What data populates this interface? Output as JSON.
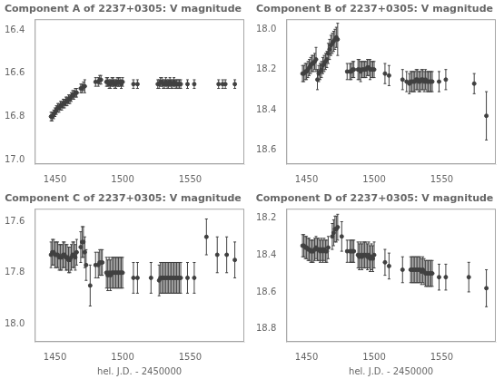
{
  "chart_data": [
    {
      "type": "scatter",
      "title": "Component A of 2237+0305: V magnitude",
      "color": "#404040",
      "marker": "circle",
      "grid": false,
      "xlim": [
        1435,
        1590
      ],
      "xticks": [
        1450,
        1500,
        1550
      ],
      "ylim": [
        17.02,
        16.35
      ],
      "yticks": [
        16.4,
        16.6,
        16.8,
        {
          "value": 17.0,
          "label": "17.0"
        }
      ],
      "x": [
        1447,
        1448,
        1449,
        1450,
        1451,
        1452,
        1453,
        1454,
        1455,
        1456,
        1457,
        1458,
        1459,
        1460,
        1461,
        1462,
        1463,
        1464,
        1465,
        1466,
        1469,
        1470,
        1471,
        1472,
        1480,
        1482,
        1483,
        1484,
        1488,
        1489,
        1490,
        1491,
        1492,
        1493,
        1494,
        1495,
        1496,
        1497,
        1498,
        1499,
        1500,
        1508,
        1511,
        1526,
        1527,
        1528,
        1529,
        1530,
        1531,
        1532,
        1533,
        1534,
        1535,
        1536,
        1537,
        1538,
        1539,
        1540,
        1541,
        1542,
        1543,
        1548,
        1553,
        1571,
        1574,
        1576,
        1583
      ],
      "values": [
        16.8,
        16.8,
        16.79,
        16.78,
        16.77,
        16.76,
        16.76,
        16.75,
        16.75,
        16.74,
        16.74,
        16.73,
        16.73,
        16.72,
        16.72,
        16.71,
        16.7,
        16.7,
        16.69,
        16.69,
        16.67,
        16.67,
        16.66,
        16.66,
        16.64,
        16.64,
        16.63,
        16.63,
        16.64,
        16.64,
        16.65,
        16.65,
        16.64,
        16.64,
        16.65,
        16.65,
        16.64,
        16.64,
        16.64,
        16.65,
        16.64,
        16.65,
        16.65,
        16.65,
        16.65,
        16.64,
        16.64,
        16.65,
        16.65,
        16.64,
        16.65,
        16.65,
        16.64,
        16.65,
        16.65,
        16.64,
        16.65,
        16.65,
        16.65,
        16.65,
        16.65,
        16.65,
        16.65,
        16.65,
        16.65,
        16.65,
        16.65
      ],
      "yerr": [
        0.02,
        0.02,
        0.02,
        0.02,
        0.02,
        0.02,
        0.02,
        0.02,
        0.02,
        0.02,
        0.02,
        0.02,
        0.02,
        0.02,
        0.02,
        0.02,
        0.02,
        0.02,
        0.02,
        0.02,
        0.02,
        0.02,
        0.02,
        0.03,
        0.02,
        0.02,
        0.02,
        0.02,
        0.02,
        0.02,
        0.02,
        0.02,
        0.02,
        0.02,
        0.02,
        0.02,
        0.02,
        0.02,
        0.02,
        0.02,
        0.02,
        0.02,
        0.02,
        0.02,
        0.02,
        0.02,
        0.02,
        0.02,
        0.02,
        0.02,
        0.02,
        0.02,
        0.02,
        0.02,
        0.02,
        0.02,
        0.02,
        0.02,
        0.02,
        0.02,
        0.02,
        0.02,
        0.02,
        0.02,
        0.02,
        0.02,
        0.02
      ]
    },
    {
      "type": "scatter",
      "title": "Component B of 2237+0305: V magnitude",
      "color": "#404040",
      "marker": "circle",
      "grid": false,
      "xlim": [
        1435,
        1590
      ],
      "xticks": [
        1450,
        1500,
        1550
      ],
      "ylim": [
        18.67,
        17.95
      ],
      "yticks": [
        {
          "value": 18.0,
          "label": "18.0"
        },
        18.2,
        18.4,
        18.6
      ],
      "x": [
        1447,
        1448,
        1449,
        1450,
        1451,
        1452,
        1453,
        1454,
        1455,
        1456,
        1457,
        1458,
        1459,
        1460,
        1461,
        1462,
        1463,
        1464,
        1465,
        1466,
        1467,
        1468,
        1469,
        1470,
        1471,
        1472,
        1473,
        1480,
        1482,
        1483,
        1484,
        1485,
        1488,
        1489,
        1490,
        1491,
        1492,
        1493,
        1494,
        1495,
        1496,
        1497,
        1498,
        1499,
        1500,
        1508,
        1511,
        1521,
        1524,
        1526,
        1527,
        1528,
        1529,
        1530,
        1531,
        1532,
        1533,
        1534,
        1535,
        1536,
        1537,
        1538,
        1539,
        1540,
        1541,
        1542,
        1543,
        1548,
        1553,
        1574,
        1583
      ],
      "values": [
        18.22,
        18.22,
        18.21,
        18.21,
        18.2,
        18.19,
        18.18,
        18.17,
        18.17,
        18.16,
        18.15,
        18.25,
        18.22,
        18.21,
        18.2,
        18.18,
        18.17,
        18.16,
        18.15,
        18.12,
        18.1,
        18.08,
        18.07,
        18.06,
        18.05,
        18.04,
        18.05,
        18.21,
        18.21,
        18.21,
        18.2,
        18.2,
        18.2,
        18.2,
        18.21,
        18.2,
        18.2,
        18.2,
        18.2,
        18.19,
        18.19,
        18.2,
        18.2,
        18.2,
        18.2,
        18.22,
        18.23,
        18.25,
        18.26,
        18.27,
        18.26,
        18.26,
        18.26,
        18.26,
        18.25,
        18.25,
        18.26,
        18.26,
        18.25,
        18.25,
        18.26,
        18.25,
        18.26,
        18.26,
        18.26,
        18.26,
        18.26,
        18.26,
        18.25,
        18.27,
        18.43
      ],
      "yerr": [
        0.04,
        0.04,
        0.04,
        0.04,
        0.04,
        0.04,
        0.04,
        0.04,
        0.04,
        0.04,
        0.06,
        0.05,
        0.04,
        0.04,
        0.04,
        0.04,
        0.04,
        0.04,
        0.04,
        0.05,
        0.05,
        0.05,
        0.05,
        0.05,
        0.05,
        0.05,
        0.08,
        0.04,
        0.04,
        0.04,
        0.04,
        0.04,
        0.05,
        0.05,
        0.05,
        0.04,
        0.04,
        0.04,
        0.04,
        0.04,
        0.04,
        0.05,
        0.04,
        0.04,
        0.04,
        0.05,
        0.05,
        0.05,
        0.05,
        0.05,
        0.05,
        0.05,
        0.05,
        0.05,
        0.05,
        0.05,
        0.05,
        0.05,
        0.05,
        0.05,
        0.05,
        0.05,
        0.05,
        0.05,
        0.05,
        0.05,
        0.05,
        0.05,
        0.05,
        0.05,
        0.12
      ]
    },
    {
      "type": "scatter",
      "title": "Component C of 2237+0305: V magnitude",
      "xlabel": "hel. J.D. - 2450000",
      "color": "#404040",
      "marker": "circle",
      "grid": false,
      "xlim": [
        1435,
        1590
      ],
      "xticks": [
        1450,
        1500,
        1550
      ],
      "ylim": [
        18.07,
        17.55
      ],
      "yticks": [
        17.6,
        17.8,
        {
          "value": 18.0,
          "label": "18.0"
        }
      ],
      "x": [
        1447,
        1448,
        1449,
        1450,
        1451,
        1452,
        1453,
        1454,
        1455,
        1456,
        1457,
        1458,
        1459,
        1460,
        1461,
        1462,
        1463,
        1464,
        1465,
        1466,
        1469,
        1470,
        1471,
        1472,
        1473,
        1476,
        1480,
        1482,
        1483,
        1484,
        1485,
        1488,
        1489,
        1490,
        1491,
        1492,
        1493,
        1494,
        1495,
        1496,
        1497,
        1498,
        1499,
        1500,
        1508,
        1511,
        1521,
        1527,
        1528,
        1529,
        1530,
        1531,
        1532,
        1533,
        1534,
        1535,
        1536,
        1537,
        1538,
        1539,
        1540,
        1541,
        1542,
        1543,
        1548,
        1553,
        1562,
        1570,
        1577,
        1583
      ],
      "values": [
        17.73,
        17.72,
        17.72,
        17.73,
        17.73,
        17.73,
        17.74,
        17.74,
        17.74,
        17.73,
        17.73,
        17.74,
        17.74,
        17.75,
        17.75,
        17.74,
        17.73,
        17.73,
        17.74,
        17.72,
        17.7,
        17.68,
        17.68,
        17.72,
        17.77,
        17.85,
        17.77,
        17.77,
        17.76,
        17.76,
        17.76,
        17.8,
        17.81,
        17.8,
        17.81,
        17.8,
        17.8,
        17.8,
        17.8,
        17.8,
        17.8,
        17.8,
        17.8,
        17.8,
        17.82,
        17.82,
        17.82,
        17.83,
        17.82,
        17.82,
        17.82,
        17.82,
        17.82,
        17.82,
        17.82,
        17.82,
        17.82,
        17.82,
        17.82,
        17.82,
        17.82,
        17.82,
        17.82,
        17.82,
        17.82,
        17.82,
        17.66,
        17.73,
        17.73,
        17.75
      ],
      "yerr": [
        0.05,
        0.05,
        0.05,
        0.05,
        0.05,
        0.05,
        0.05,
        0.05,
        0.05,
        0.05,
        0.05,
        0.05,
        0.05,
        0.05,
        0.05,
        0.05,
        0.05,
        0.05,
        0.05,
        0.05,
        0.06,
        0.06,
        0.06,
        0.06,
        0.06,
        0.08,
        0.05,
        0.05,
        0.05,
        0.05,
        0.05,
        0.06,
        0.06,
        0.06,
        0.06,
        0.06,
        0.06,
        0.06,
        0.06,
        0.06,
        0.06,
        0.06,
        0.06,
        0.06,
        0.06,
        0.06,
        0.06,
        0.06,
        0.06,
        0.06,
        0.06,
        0.06,
        0.06,
        0.06,
        0.06,
        0.06,
        0.06,
        0.06,
        0.06,
        0.06,
        0.06,
        0.06,
        0.06,
        0.06,
        0.06,
        0.06,
        0.07,
        0.07,
        0.07,
        0.07
      ]
    },
    {
      "type": "scatter",
      "title": "Component D of 2237+0305: V magnitude",
      "xlabel": "hel. J.D. - 2450000",
      "color": "#404040",
      "marker": "circle",
      "grid": false,
      "xlim": [
        1435,
        1590
      ],
      "xticks": [
        1450,
        1500,
        1550
      ],
      "ylim": [
        18.87,
        18.15
      ],
      "yticks": [
        18.2,
        18.4,
        18.6,
        18.8
      ],
      "x": [
        1447,
        1448,
        1449,
        1450,
        1451,
        1452,
        1453,
        1454,
        1455,
        1456,
        1457,
        1458,
        1459,
        1460,
        1461,
        1462,
        1463,
        1464,
        1465,
        1466,
        1469,
        1470,
        1471,
        1472,
        1473,
        1476,
        1480,
        1482,
        1483,
        1484,
        1485,
        1488,
        1489,
        1490,
        1491,
        1492,
        1493,
        1494,
        1495,
        1496,
        1497,
        1498,
        1499,
        1500,
        1508,
        1511,
        1521,
        1527,
        1528,
        1529,
        1530,
        1531,
        1532,
        1533,
        1534,
        1535,
        1536,
        1537,
        1538,
        1539,
        1540,
        1541,
        1542,
        1543,
        1548,
        1553,
        1570,
        1583
      ],
      "values": [
        18.35,
        18.35,
        18.36,
        18.36,
        18.37,
        18.37,
        18.38,
        18.38,
        18.38,
        18.37,
        18.36,
        18.37,
        18.37,
        18.38,
        18.37,
        18.38,
        18.37,
        18.38,
        18.38,
        18.36,
        18.3,
        18.28,
        18.26,
        18.26,
        18.25,
        18.3,
        18.38,
        18.38,
        18.38,
        18.38,
        18.38,
        18.4,
        18.41,
        18.4,
        18.41,
        18.4,
        18.4,
        18.4,
        18.41,
        18.4,
        18.42,
        18.41,
        18.42,
        18.4,
        18.44,
        18.46,
        18.48,
        18.48,
        18.48,
        18.48,
        18.48,
        18.48,
        18.48,
        18.48,
        18.48,
        18.49,
        18.48,
        18.49,
        18.5,
        18.5,
        18.5,
        18.5,
        18.5,
        18.5,
        18.52,
        18.52,
        18.52,
        18.58
      ],
      "yerr": [
        0.06,
        0.06,
        0.06,
        0.06,
        0.06,
        0.06,
        0.06,
        0.06,
        0.06,
        0.06,
        0.06,
        0.06,
        0.06,
        0.06,
        0.06,
        0.06,
        0.06,
        0.06,
        0.06,
        0.06,
        0.07,
        0.07,
        0.07,
        0.07,
        0.07,
        0.08,
        0.06,
        0.06,
        0.06,
        0.06,
        0.06,
        0.07,
        0.07,
        0.07,
        0.07,
        0.07,
        0.07,
        0.07,
        0.07,
        0.07,
        0.07,
        0.07,
        0.07,
        0.07,
        0.07,
        0.07,
        0.07,
        0.07,
        0.07,
        0.07,
        0.07,
        0.07,
        0.07,
        0.07,
        0.07,
        0.07,
        0.07,
        0.07,
        0.07,
        0.07,
        0.07,
        0.07,
        0.07,
        0.07,
        0.07,
        0.07,
        0.08,
        0.1
      ]
    }
  ]
}
